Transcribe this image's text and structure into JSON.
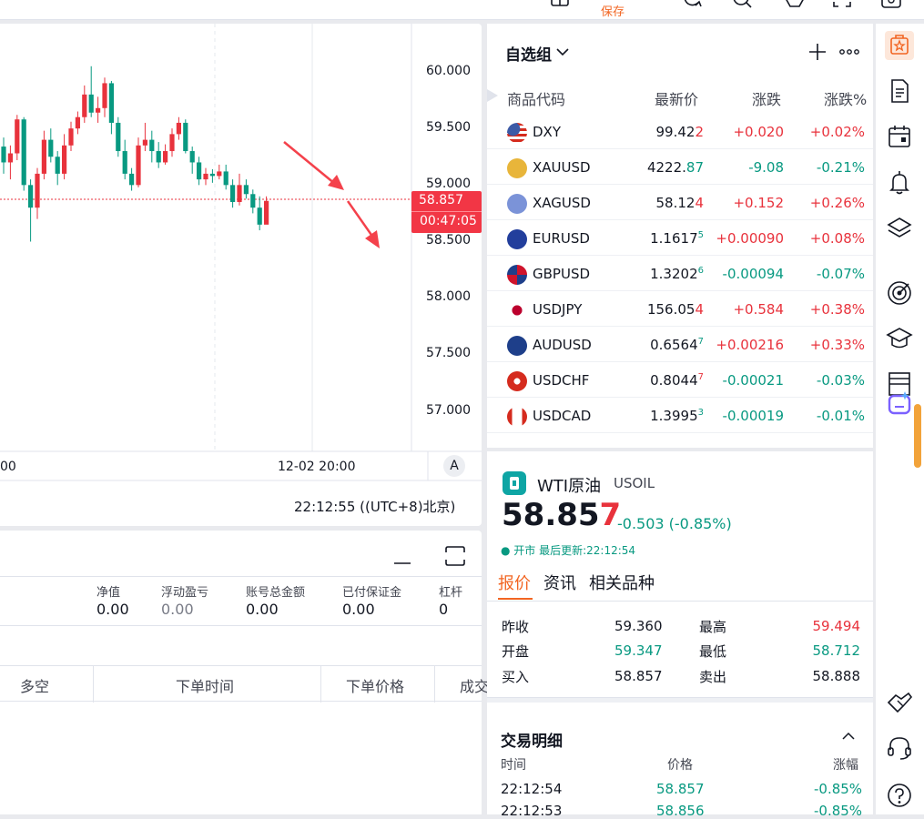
{
  "topbar": {
    "save_label": "保存"
  },
  "chart": {
    "price_ticks": [
      "60.000",
      "59.500",
      "59.000",
      "58.500",
      "58.000",
      "57.500",
      "57.000"
    ],
    "current_price": "58.857",
    "countdown": "00:47:05",
    "time_tick_left": "00",
    "time_tick_right": "12-02 20:00",
    "auto_scale_label": "A",
    "clock": "22:12:55 ((UTC+8)北京)",
    "colors": {
      "up": "#e8323c",
      "down": "#089981"
    }
  },
  "positions": {
    "summary": [
      {
        "label": "净值",
        "value": "0.00"
      },
      {
        "label": "浮动盈亏",
        "value": "0.00"
      },
      {
        "label": "账号总金额",
        "value": "0.00"
      },
      {
        "label": "已付保证金",
        "value": "0.00"
      },
      {
        "label": "杠杆",
        "value": "0"
      }
    ],
    "columns": [
      "多空",
      "下单时间",
      "下单价格",
      "成交"
    ]
  },
  "watchlist": {
    "title": "自选组",
    "headers": {
      "symbol": "商品代码",
      "last": "最新价",
      "change": "涨跌",
      "pct": "涨跌%"
    },
    "rows": [
      {
        "symbol": "DXY",
        "last_main": "99.42",
        "last_tail": "2",
        "tail_dir": "up",
        "change": "+0.020",
        "pct": "+0.02%",
        "dir": "up",
        "flag": "us"
      },
      {
        "symbol": "XAUUSD",
        "last_main": "4222.",
        "last_tail": "87",
        "tail_dir": "dn",
        "change": "-9.08",
        "pct": "-0.21%",
        "dir": "dn",
        "flag": "gold"
      },
      {
        "symbol": "XAGUSD",
        "last_main": "58.12",
        "last_tail": "4",
        "tail_dir": "up",
        "change": "+0.152",
        "pct": "+0.26%",
        "dir": "up",
        "flag": "silver"
      },
      {
        "symbol": "EURUSD",
        "last_main": "1.1617",
        "last_tail": "5",
        "tail_dir": "dn",
        "change": "+0.00090",
        "pct": "+0.08%",
        "dir": "up",
        "flag": "eu"
      },
      {
        "symbol": "GBPUSD",
        "last_main": "1.3202",
        "last_tail": "6",
        "tail_dir": "dn",
        "change": "-0.00094",
        "pct": "-0.07%",
        "dir": "dn",
        "flag": "gb"
      },
      {
        "symbol": "USDJPY",
        "last_main": "156.05",
        "last_tail": "4",
        "tail_dir": "up",
        "change": "+0.584",
        "pct": "+0.38%",
        "dir": "up",
        "flag": "jp"
      },
      {
        "symbol": "AUDUSD",
        "last_main": "0.6564",
        "last_tail": "7",
        "tail_dir": "dn",
        "change": "+0.00216",
        "pct": "+0.33%",
        "dir": "up",
        "flag": "au"
      },
      {
        "symbol": "USDCHF",
        "last_main": "0.8044",
        "last_tail": "7",
        "tail_dir": "up",
        "change": "-0.00021",
        "pct": "-0.03%",
        "dir": "dn",
        "flag": "ch"
      },
      {
        "symbol": "USDCAD",
        "last_main": "1.3995",
        "last_tail": "3",
        "tail_dir": "dn",
        "change": "-0.00019",
        "pct": "-0.01%",
        "dir": "dn",
        "flag": "ca"
      }
    ]
  },
  "detail": {
    "name": "WTI原油",
    "code": "USOIL",
    "price_main": "58.85",
    "price_tail": "7",
    "change": "-0.503 (-0.85%)",
    "status": "● 开市 最后更新:22:12:54",
    "tabs": [
      "报价",
      "资讯",
      "相关品种"
    ],
    "stats": [
      {
        "label": "昨收",
        "value": "59.360",
        "dir": "neutral"
      },
      {
        "label": "最高",
        "value": "59.494",
        "dir": "up"
      },
      {
        "label": "开盘",
        "value": "59.347",
        "dir": "dn"
      },
      {
        "label": "最低",
        "value": "58.712",
        "dir": "dn"
      },
      {
        "label": "买入",
        "value": "58.857",
        "dir": "neutral"
      },
      {
        "label": "卖出",
        "value": "58.888",
        "dir": "neutral"
      }
    ],
    "trades_title": "交易明细",
    "trades_headers": [
      "时间",
      "价格",
      "涨幅"
    ],
    "trades": [
      {
        "time": "22:12:54",
        "price": "58.857",
        "pct": "-0.85%"
      },
      {
        "time": "22:12:53",
        "price": "58.856",
        "pct": "-0.85%"
      }
    ]
  },
  "right_toolbar": {
    "tools": [
      "watchlist-icon",
      "news-icon",
      "calendar-icon",
      "alerts-icon",
      "layers-icon",
      "signals-icon",
      "academy-icon",
      "calendar-grid-icon",
      "ai-assistant-icon",
      "handshake-icon",
      "support-icon",
      "help-icon"
    ]
  }
}
